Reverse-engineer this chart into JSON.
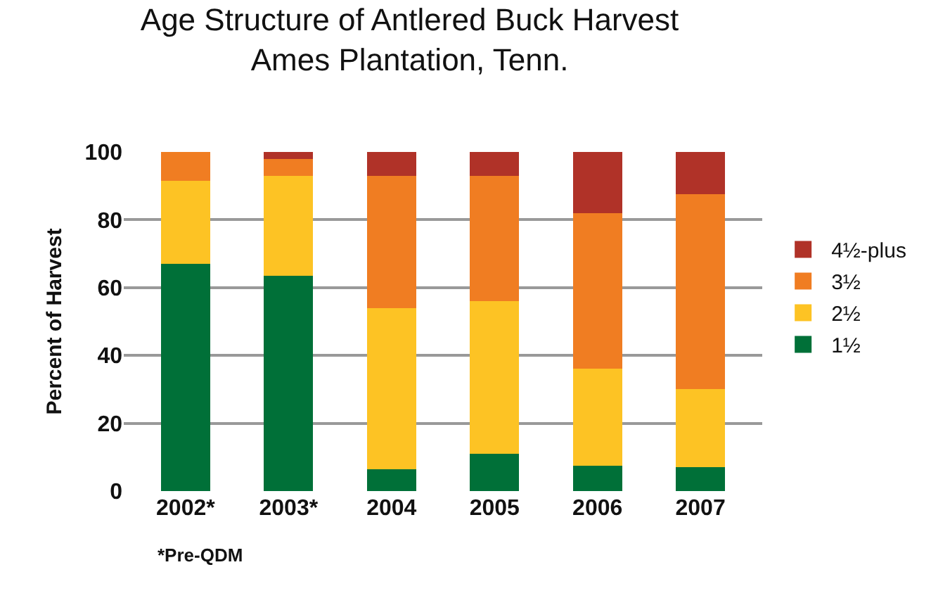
{
  "chart_data": {
    "type": "bar",
    "title": "Age Structure of Antlered Buck Harvest\nAmes Plantation, Tenn.",
    "ylabel": "Percent of Harvest",
    "categories": [
      "2002*",
      "2003*",
      "2004",
      "2005",
      "2006",
      "2007"
    ],
    "stacked": true,
    "series": [
      {
        "name": "1½",
        "color": "#007038",
        "values": [
          67,
          63.5,
          6.5,
          11,
          7.5,
          7
        ]
      },
      {
        "name": "2½",
        "color": "#fdc324",
        "values": [
          24.5,
          29.5,
          47.5,
          45,
          28.5,
          23
        ]
      },
      {
        "name": "3½",
        "color": "#f07d22",
        "values": [
          8.5,
          5,
          39,
          37,
          46,
          57.5
        ]
      },
      {
        "name": "4½-plus",
        "color": "#b03228",
        "values": [
          0,
          2,
          7,
          7,
          18,
          12.5
        ]
      }
    ],
    "ylim": [
      0,
      100
    ],
    "yticks": [
      0,
      20,
      40,
      60,
      80,
      100
    ],
    "grid": "y",
    "legend": "right",
    "annotations": [
      "*Pre-QDM"
    ]
  }
}
